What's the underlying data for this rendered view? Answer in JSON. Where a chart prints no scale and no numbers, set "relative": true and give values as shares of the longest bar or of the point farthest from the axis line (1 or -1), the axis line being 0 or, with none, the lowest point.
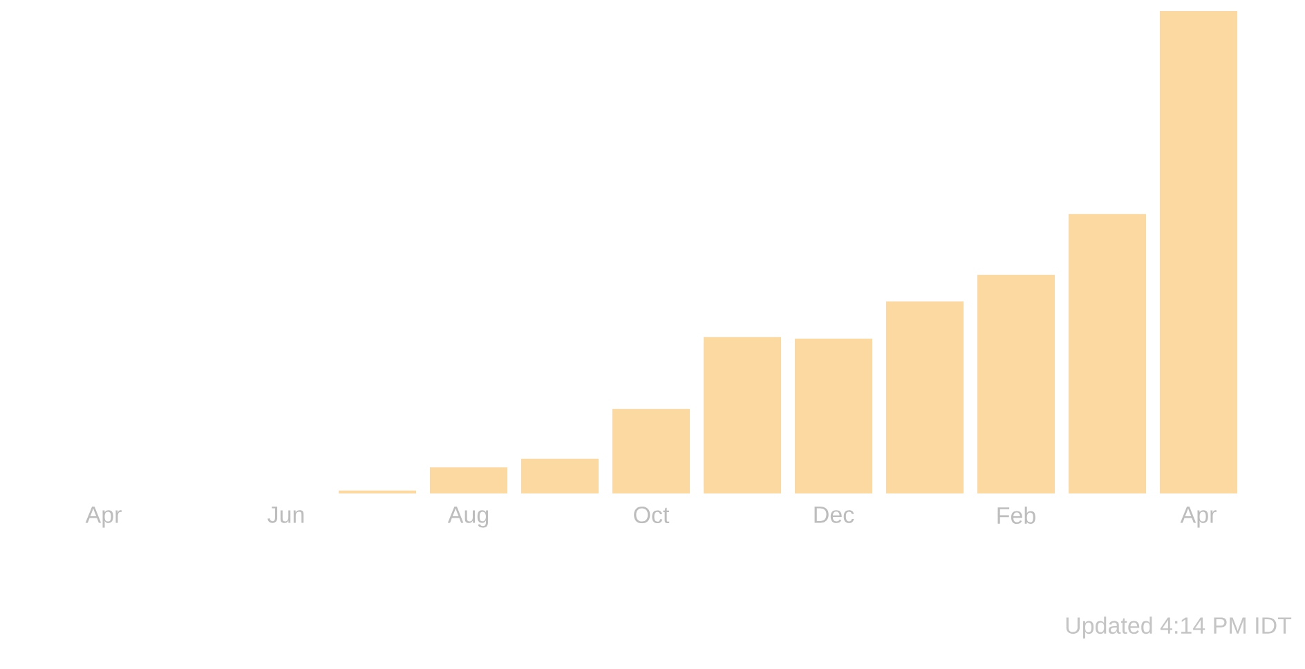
{
  "chart_data": {
    "type": "bar",
    "relative": true,
    "color": "#fcd9a0",
    "categories": [
      "Apr",
      null,
      "Jun",
      null,
      "Aug",
      null,
      "Oct",
      null,
      "Dec",
      null,
      "Feb",
      null,
      "Apr"
    ],
    "values": [
      0,
      0,
      0,
      0.006,
      0.054,
      0.072,
      0.175,
      0.324,
      0.321,
      0.398,
      0.453,
      0.579,
      1
    ],
    "annotations": [
      "Updated 4:14 PM IDT"
    ]
  }
}
